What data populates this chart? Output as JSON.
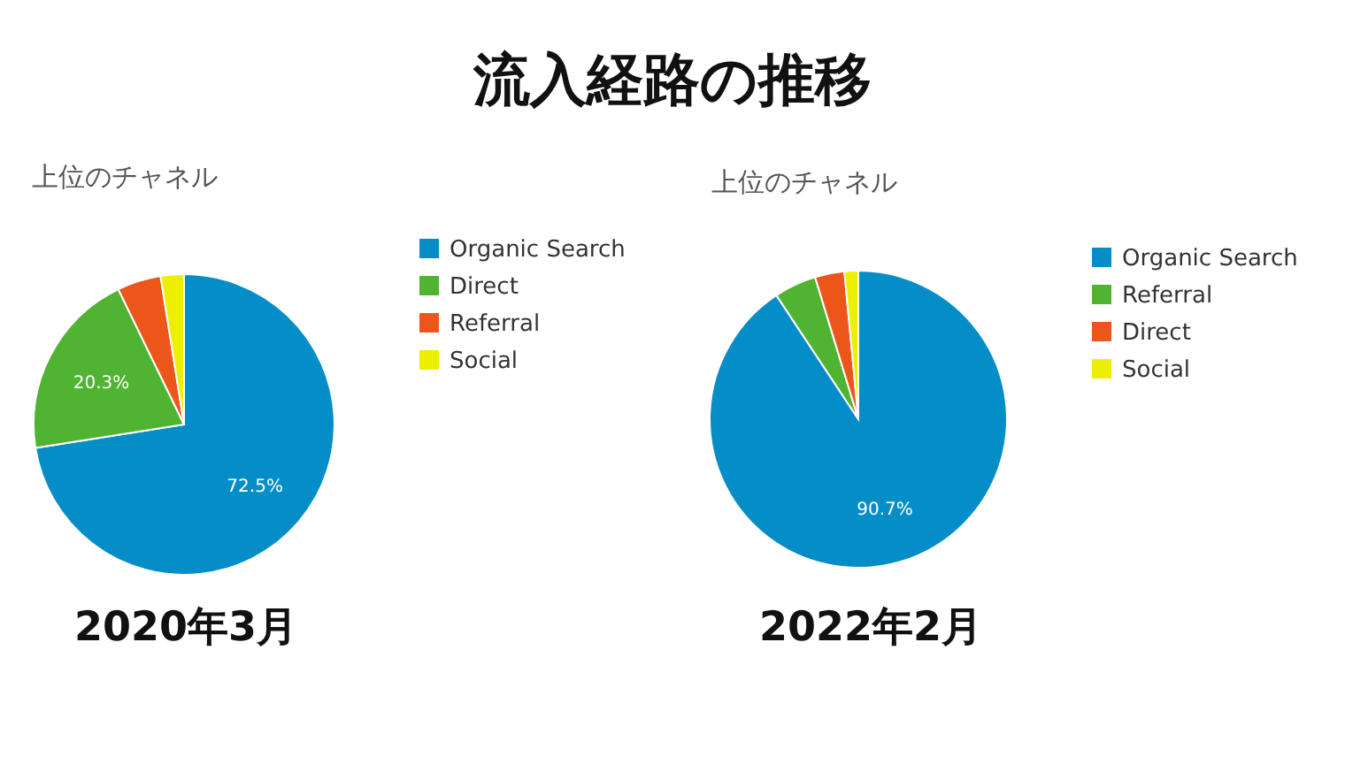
{
  "chart_data": [
    {
      "type": "other",
      "title": "流入経路の推移"
    },
    {
      "type": "pie",
      "title": "上位のチャネル",
      "xlabel": "2020年3月",
      "categories": [
        "Organic Search",
        "Direct",
        "Referral",
        "Social"
      ],
      "values": [
        72.5,
        20.3,
        4.7,
        2.5
      ],
      "colors": [
        "#058dc7",
        "#50b432",
        "#ed561b",
        "#edef00"
      ],
      "value_labels": [
        "72.5%",
        "20.3%",
        null,
        null
      ],
      "legend": "right"
    },
    {
      "type": "pie",
      "title": "上位のチャネル",
      "xlabel": "2022年2月",
      "categories": [
        "Organic Search",
        "Referral",
        "Direct",
        "Social"
      ],
      "values": [
        90.7,
        4.6,
        3.2,
        1.5
      ],
      "colors": [
        "#058dc7",
        "#50b432",
        "#ed561b",
        "#edef00"
      ],
      "value_labels": [
        "90.7%",
        null,
        null,
        null
      ],
      "legend": "right"
    }
  ]
}
